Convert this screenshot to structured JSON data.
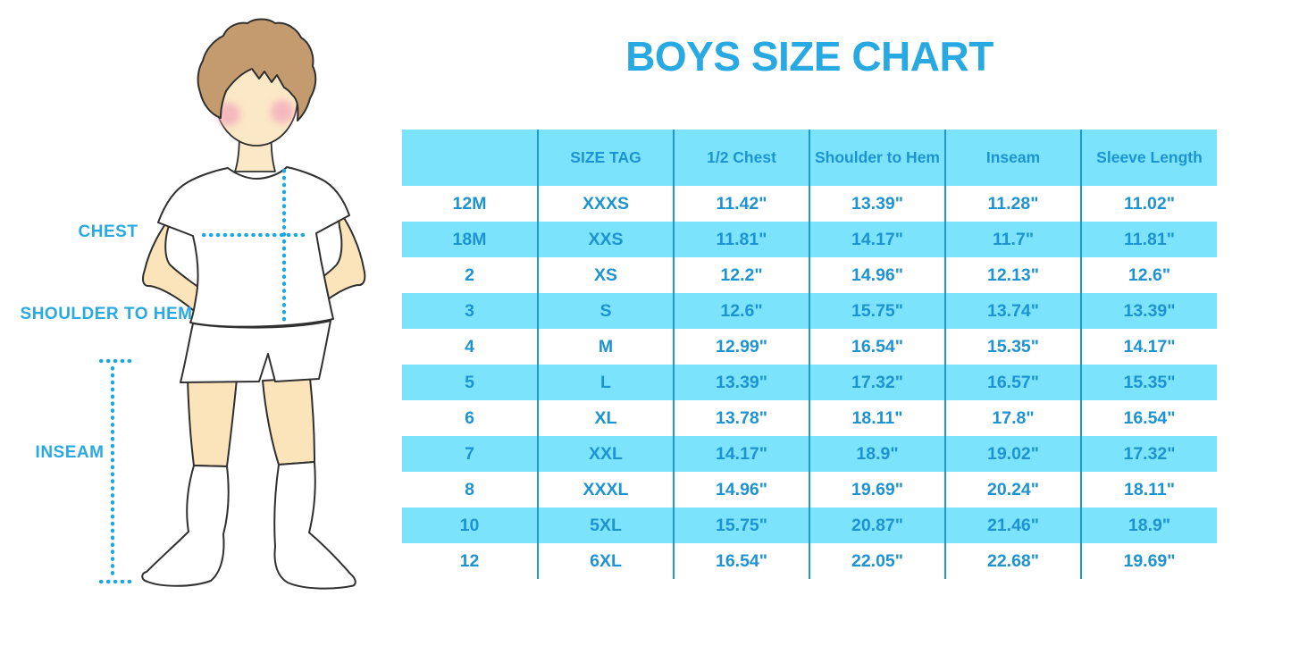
{
  "title": "BOYS SIZE CHART",
  "figure": {
    "chest_label": "CHEST",
    "shoulder_to_hem_label": "SHOULDER TO HEM",
    "inseam_label": "INSEAM"
  },
  "chart_data": {
    "type": "table",
    "title": "BOYS SIZE CHART",
    "columns": [
      "",
      "SIZE TAG",
      "1/2 Chest",
      "Shoulder to Hem",
      "Inseam",
      "Sleeve Length"
    ],
    "rows": [
      [
        "12M",
        "XXXS",
        "11.42\"",
        "13.39\"",
        "11.28\"",
        "11.02\""
      ],
      [
        "18M",
        "XXS",
        "11.81\"",
        "14.17\"",
        "11.7\"",
        "11.81\""
      ],
      [
        "2",
        "XS",
        "12.2\"",
        "14.96\"",
        "12.13\"",
        "12.6\""
      ],
      [
        "3",
        "S",
        "12.6\"",
        "15.75\"",
        "13.74\"",
        "13.39\""
      ],
      [
        "4",
        "M",
        "12.99\"",
        "16.54\"",
        "15.35\"",
        "14.17\""
      ],
      [
        "5",
        "L",
        "13.39\"",
        "17.32\"",
        "16.57\"",
        "15.35\""
      ],
      [
        "6",
        "XL",
        "13.78\"",
        "18.11\"",
        "17.8\"",
        "16.54\""
      ],
      [
        "7",
        "XXL",
        "14.17\"",
        "18.9\"",
        "19.02\"",
        "17.32\""
      ],
      [
        "8",
        "XXXL",
        "14.96\"",
        "19.69\"",
        "20.24\"",
        "18.11\""
      ],
      [
        "10",
        "5XL",
        "15.75\"",
        "20.87\"",
        "21.46\"",
        "18.9\""
      ],
      [
        "12",
        "6XL",
        "16.54\"",
        "22.05\"",
        "22.68\"",
        "19.69\""
      ]
    ]
  },
  "colors": {
    "accent_blue": "#29A9E1",
    "table_text_blue": "#1E93D2",
    "row_cyan": "#7BE3FB",
    "grid_line_blue": "#2197CD",
    "skin": "#FBE8C6",
    "hair_brown": "#C49B6F",
    "blush_pink": "#F3A8BC",
    "outline": "#303030"
  }
}
